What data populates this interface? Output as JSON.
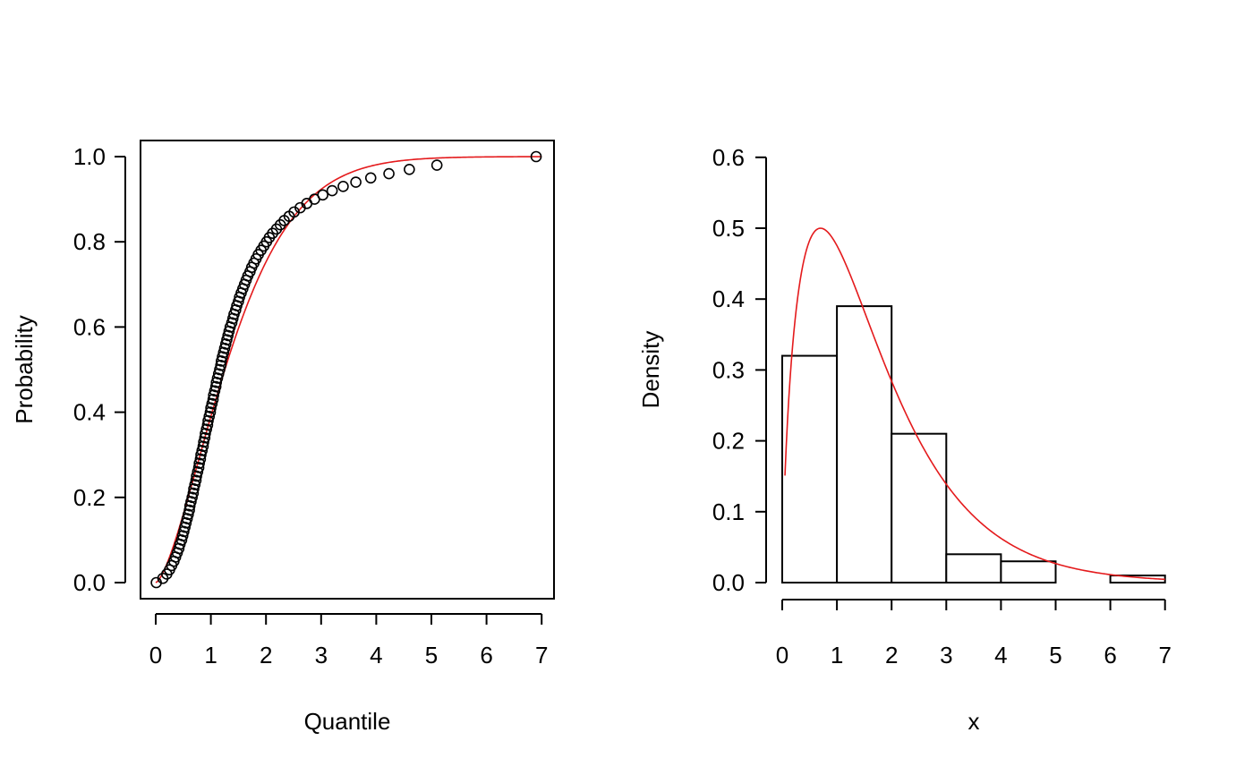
{
  "colors": {
    "axis": "#000000",
    "curve": "#e41a1c",
    "points": "#000000",
    "bar_fill": "#ffffff"
  },
  "chart_data": [
    {
      "type": "scatter",
      "title": "",
      "xlabel": "Quantile",
      "ylabel": "Probability",
      "xlim": [
        0,
        7
      ],
      "ylim": [
        0,
        1
      ],
      "x_ticks": [
        "0",
        "1",
        "2",
        "3",
        "4",
        "5",
        "6",
        "7"
      ],
      "y_ticks": [
        "0.0",
        "0.2",
        "0.4",
        "0.6",
        "0.8",
        "1.0"
      ],
      "box": true,
      "points": [
        [
          0.01,
          0.0
        ],
        [
          0.13,
          0.01
        ],
        [
          0.2,
          0.02
        ],
        [
          0.25,
          0.03
        ],
        [
          0.29,
          0.04
        ],
        [
          0.33,
          0.05
        ],
        [
          0.36,
          0.06
        ],
        [
          0.39,
          0.07
        ],
        [
          0.42,
          0.08
        ],
        [
          0.44,
          0.09
        ],
        [
          0.47,
          0.1
        ],
        [
          0.49,
          0.11
        ],
        [
          0.51,
          0.12
        ],
        [
          0.53,
          0.13
        ],
        [
          0.55,
          0.14
        ],
        [
          0.57,
          0.15
        ],
        [
          0.59,
          0.16
        ],
        [
          0.61,
          0.17
        ],
        [
          0.62,
          0.18
        ],
        [
          0.64,
          0.19
        ],
        [
          0.66,
          0.2
        ],
        [
          0.68,
          0.21
        ],
        [
          0.69,
          0.22
        ],
        [
          0.71,
          0.23
        ],
        [
          0.73,
          0.24
        ],
        [
          0.74,
          0.25
        ],
        [
          0.76,
          0.26
        ],
        [
          0.78,
          0.27
        ],
        [
          0.79,
          0.28
        ],
        [
          0.81,
          0.29
        ],
        [
          0.82,
          0.3
        ],
        [
          0.84,
          0.31
        ],
        [
          0.86,
          0.32
        ],
        [
          0.87,
          0.33
        ],
        [
          0.89,
          0.34
        ],
        [
          0.9,
          0.35
        ],
        [
          0.92,
          0.36
        ],
        [
          0.94,
          0.37
        ],
        [
          0.95,
          0.38
        ],
        [
          0.97,
          0.39
        ],
        [
          0.99,
          0.4
        ],
        [
          1.0,
          0.41
        ],
        [
          1.02,
          0.42
        ],
        [
          1.04,
          0.43
        ],
        [
          1.05,
          0.44
        ],
        [
          1.07,
          0.45
        ],
        [
          1.09,
          0.46
        ],
        [
          1.1,
          0.47
        ],
        [
          1.12,
          0.48
        ],
        [
          1.14,
          0.49
        ],
        [
          1.16,
          0.5
        ],
        [
          1.18,
          0.51
        ],
        [
          1.19,
          0.52
        ],
        [
          1.21,
          0.53
        ],
        [
          1.23,
          0.54
        ],
        [
          1.25,
          0.55
        ],
        [
          1.27,
          0.56
        ],
        [
          1.29,
          0.57
        ],
        [
          1.31,
          0.58
        ],
        [
          1.33,
          0.59
        ],
        [
          1.35,
          0.6
        ],
        [
          1.38,
          0.61
        ],
        [
          1.4,
          0.62
        ],
        [
          1.42,
          0.63
        ],
        [
          1.45,
          0.64
        ],
        [
          1.47,
          0.65
        ],
        [
          1.5,
          0.66
        ],
        [
          1.52,
          0.67
        ],
        [
          1.55,
          0.68
        ],
        [
          1.58,
          0.69
        ],
        [
          1.61,
          0.7
        ],
        [
          1.64,
          0.71
        ],
        [
          1.67,
          0.72
        ],
        [
          1.71,
          0.73
        ],
        [
          1.74,
          0.74
        ],
        [
          1.78,
          0.75
        ],
        [
          1.82,
          0.76
        ],
        [
          1.86,
          0.77
        ],
        [
          1.91,
          0.78
        ],
        [
          1.96,
          0.79
        ],
        [
          2.01,
          0.8
        ],
        [
          2.06,
          0.81
        ],
        [
          2.12,
          0.82
        ],
        [
          2.19,
          0.83
        ],
        [
          2.26,
          0.84
        ],
        [
          2.33,
          0.85
        ],
        [
          2.42,
          0.86
        ],
        [
          2.51,
          0.87
        ],
        [
          2.62,
          0.88
        ],
        [
          2.74,
          0.89
        ],
        [
          2.88,
          0.9
        ],
        [
          3.03,
          0.91
        ],
        [
          3.2,
          0.92
        ],
        [
          3.4,
          0.93
        ],
        [
          3.63,
          0.94
        ],
        [
          3.9,
          0.95
        ],
        [
          4.23,
          0.96
        ],
        [
          4.6,
          0.97
        ],
        [
          5.1,
          0.98
        ],
        [
          6.9,
          1.0
        ]
      ],
      "curve": {
        "name": "",
        "x_range": [
          0,
          7
        ]
      }
    },
    {
      "type": "bar",
      "title": "",
      "xlabel": "x",
      "ylabel": "Density",
      "xlim": [
        0,
        7
      ],
      "ylim": [
        0,
        0.6
      ],
      "x_ticks": [
        "0",
        "1",
        "2",
        "3",
        "4",
        "5",
        "6",
        "7"
      ],
      "y_ticks": [
        "0.0",
        "0.1",
        "0.2",
        "0.3",
        "0.4",
        "0.5",
        "0.6"
      ],
      "box": false,
      "bins": [
        [
          0,
          1
        ],
        [
          1,
          2
        ],
        [
          2,
          3
        ],
        [
          3,
          4
        ],
        [
          4,
          5
        ],
        [
          5,
          6
        ],
        [
          6,
          7
        ]
      ],
      "values": [
        0.32,
        0.39,
        0.21,
        0.04,
        0.03,
        0.0,
        0.01
      ],
      "curve": {
        "name": "",
        "x_range": [
          0.05,
          7
        ],
        "peak": [
          0.7,
          0.5
        ]
      }
    }
  ]
}
